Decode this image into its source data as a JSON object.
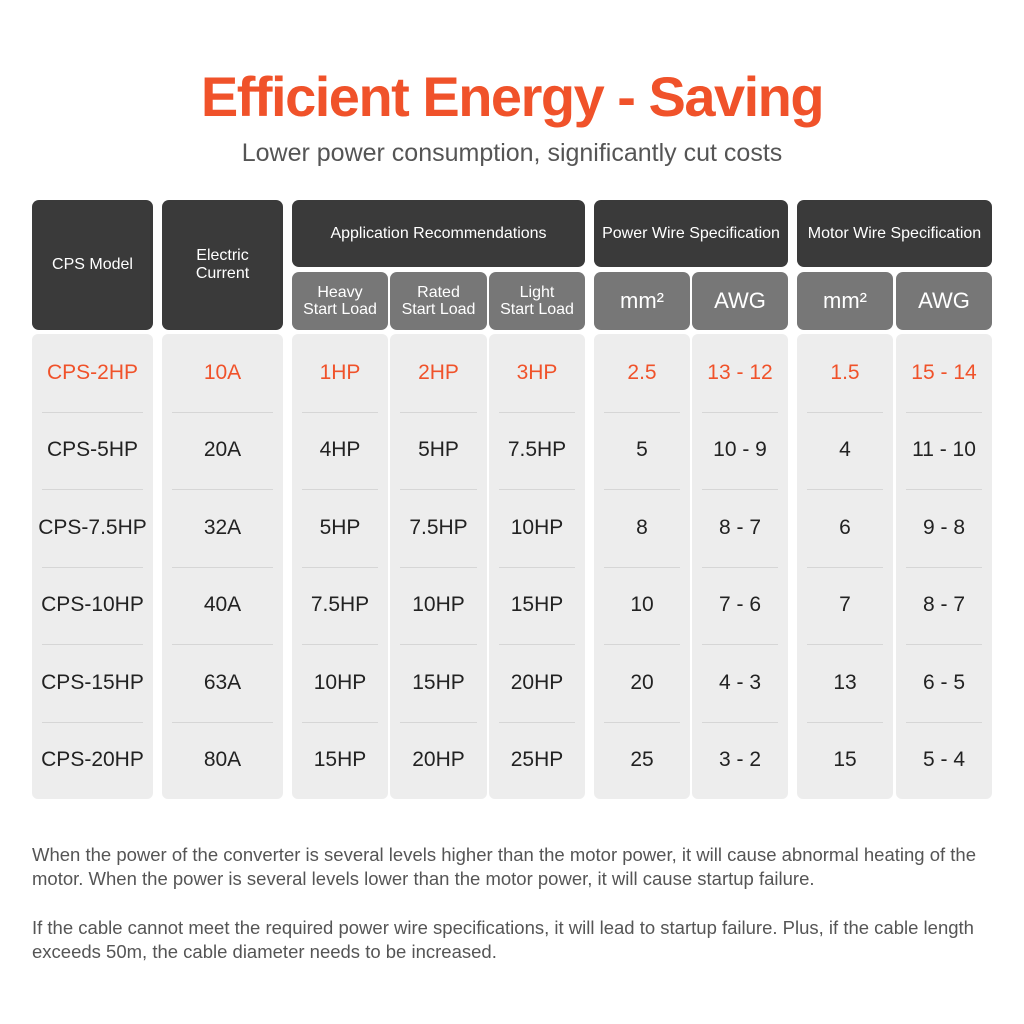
{
  "title": "Efficient Energy - Saving",
  "subtitle": "Lower power consumption, significantly cut costs",
  "headers": {
    "cps_model": "CPS Model",
    "electric_current_line1": "Electric",
    "electric_current_line2": "Current",
    "application": "Application Recommendations",
    "heavy_line1": "Heavy",
    "heavy_line2": "Start Load",
    "rated_line1": "Rated",
    "rated_line2": "Start Load",
    "light_line1": "Light",
    "light_line2": "Start Load",
    "power_wire": "Power Wire Specification",
    "motor_wire": "Motor Wire Specification",
    "mm2": "mm²",
    "awg": "AWG"
  },
  "colors": {
    "accent": "#f0522a",
    "header_dark": "#3a3a3a",
    "header_mid": "#777777",
    "column_bg": "#ededed"
  },
  "rows": [
    [
      "CPS-2HP",
      "10A",
      "1HP",
      "2HP",
      "3HP",
      "2.5",
      "13 - 12",
      "1.5",
      "15 - 14"
    ],
    [
      "CPS-5HP",
      "20A",
      "4HP",
      "5HP",
      "7.5HP",
      "5",
      "10 - 9",
      "4",
      "11 - 10"
    ],
    [
      "CPS-7.5HP",
      "32A",
      "5HP",
      "7.5HP",
      "10HP",
      "8",
      "8 - 7",
      "6",
      "9 - 8"
    ],
    [
      "CPS-10HP",
      "40A",
      "7.5HP",
      "10HP",
      "15HP",
      "10",
      "7 - 6",
      "7",
      "8 - 7"
    ],
    [
      "CPS-15HP",
      "63A",
      "10HP",
      "15HP",
      "20HP",
      "20",
      "4 - 3",
      "13",
      "6 - 5"
    ],
    [
      "CPS-20HP",
      "80A",
      "15HP",
      "20HP",
      "25HP",
      "25",
      "3 - 2",
      "15",
      "5 - 4"
    ]
  ],
  "notes": [
    "When the power of the converter is several levels higher than the motor power, it will cause abnormal heating of the motor. When the power is several levels lower than the motor power, it will cause startup failure.",
    "If the cable cannot meet the required power wire specifications, it will lead to startup failure. Plus, if the cable length exceeds 50m, the cable diameter needs to be increased."
  ]
}
